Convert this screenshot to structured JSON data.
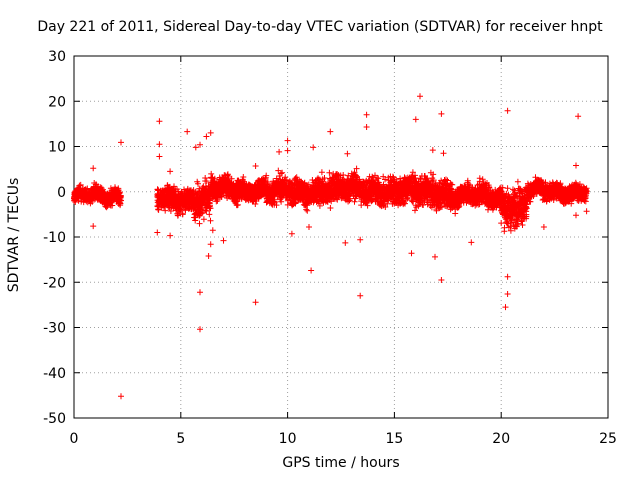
{
  "chart_data": {
    "type": "scatter",
    "title": "Day 221 of 2011, Sidereal Day-to-day VTEC variation (SDTVAR) for receiver hnpt",
    "xlabel": "GPS time / hours",
    "ylabel": "SDTVAR / TECUs",
    "xlim": [
      0,
      25
    ],
    "ylim": [
      -50,
      30
    ],
    "xticks": [
      "0",
      "5",
      "10",
      "15",
      "20",
      "25"
    ],
    "yticks": [
      "30",
      "20",
      "10",
      "0",
      "-10",
      "-20",
      "-30",
      "-40",
      "-50"
    ],
    "grid": true,
    "marker": "+",
    "color": "#ff0000",
    "series": [
      {
        "name": "SDTVAR",
        "segments": [
          {
            "x_start": 0.0,
            "x_end": 2.2,
            "center": -1.0,
            "spread": 2.5
          },
          {
            "x_start": 3.9,
            "x_end": 5.6,
            "center": -1.5,
            "spread": 4.0
          },
          {
            "x_start": 5.6,
            "x_end": 6.4,
            "center": -2.0,
            "spread": 6.0
          },
          {
            "x_start": 6.4,
            "x_end": 9.0,
            "center": 0.5,
            "spread": 4.0
          },
          {
            "x_start": 9.0,
            "x_end": 11.5,
            "center": 0.0,
            "spread": 4.5
          },
          {
            "x_start": 11.5,
            "x_end": 14.5,
            "center": 0.5,
            "spread": 5.0
          },
          {
            "x_start": 14.5,
            "x_end": 17.5,
            "center": 0.0,
            "spread": 5.0
          },
          {
            "x_start": 17.5,
            "x_end": 20.0,
            "center": -1.0,
            "spread": 4.0
          },
          {
            "x_start": 20.0,
            "x_end": 21.2,
            "center": -3.0,
            "spread": 7.0
          },
          {
            "x_start": 21.2,
            "x_end": 24.0,
            "center": 0.0,
            "spread": 3.0
          }
        ],
        "outliers": [
          [
            0.9,
            5.2
          ],
          [
            0.9,
            -7.6
          ],
          [
            2.2,
            10.9
          ],
          [
            2.2,
            -45.2
          ],
          [
            3.9,
            -9.0
          ],
          [
            4.0,
            15.6
          ],
          [
            4.0,
            10.5
          ],
          [
            4.0,
            7.8
          ],
          [
            4.5,
            -9.7
          ],
          [
            4.5,
            4.5
          ],
          [
            5.3,
            13.3
          ],
          [
            5.7,
            9.8
          ],
          [
            5.9,
            10.4
          ],
          [
            5.9,
            -22.2
          ],
          [
            5.9,
            -30.4
          ],
          [
            6.2,
            12.2
          ],
          [
            6.4,
            13.0
          ],
          [
            6.3,
            -14.2
          ],
          [
            6.4,
            -11.6
          ],
          [
            6.5,
            -8.5
          ],
          [
            7.0,
            -10.8
          ],
          [
            8.5,
            -24.4
          ],
          [
            8.5,
            5.7
          ],
          [
            9.6,
            8.8
          ],
          [
            10.0,
            11.3
          ],
          [
            10.0,
            9.1
          ],
          [
            10.2,
            -9.3
          ],
          [
            11.0,
            -7.8
          ],
          [
            11.1,
            -17.4
          ],
          [
            11.2,
            9.8
          ],
          [
            12.0,
            13.3
          ],
          [
            12.7,
            -11.3
          ],
          [
            12.8,
            8.4
          ],
          [
            13.4,
            -23.0
          ],
          [
            13.4,
            -10.6
          ],
          [
            13.7,
            17.0
          ],
          [
            13.7,
            14.3
          ],
          [
            15.8,
            -13.6
          ],
          [
            16.0,
            16.0
          ],
          [
            16.2,
            21.1
          ],
          [
            16.9,
            -14.4
          ],
          [
            16.8,
            9.2
          ],
          [
            17.2,
            17.2
          ],
          [
            17.2,
            -19.5
          ],
          [
            17.3,
            8.5
          ],
          [
            18.6,
            -11.2
          ],
          [
            19.0,
            3.0
          ],
          [
            20.3,
            17.9
          ],
          [
            20.3,
            -18.8
          ],
          [
            20.3,
            -22.6
          ],
          [
            20.2,
            -25.5
          ],
          [
            22.0,
            -7.8
          ],
          [
            23.5,
            -5.2
          ],
          [
            23.6,
            16.7
          ],
          [
            23.5,
            5.8
          ],
          [
            24.0,
            -4.3
          ]
        ]
      }
    ]
  }
}
